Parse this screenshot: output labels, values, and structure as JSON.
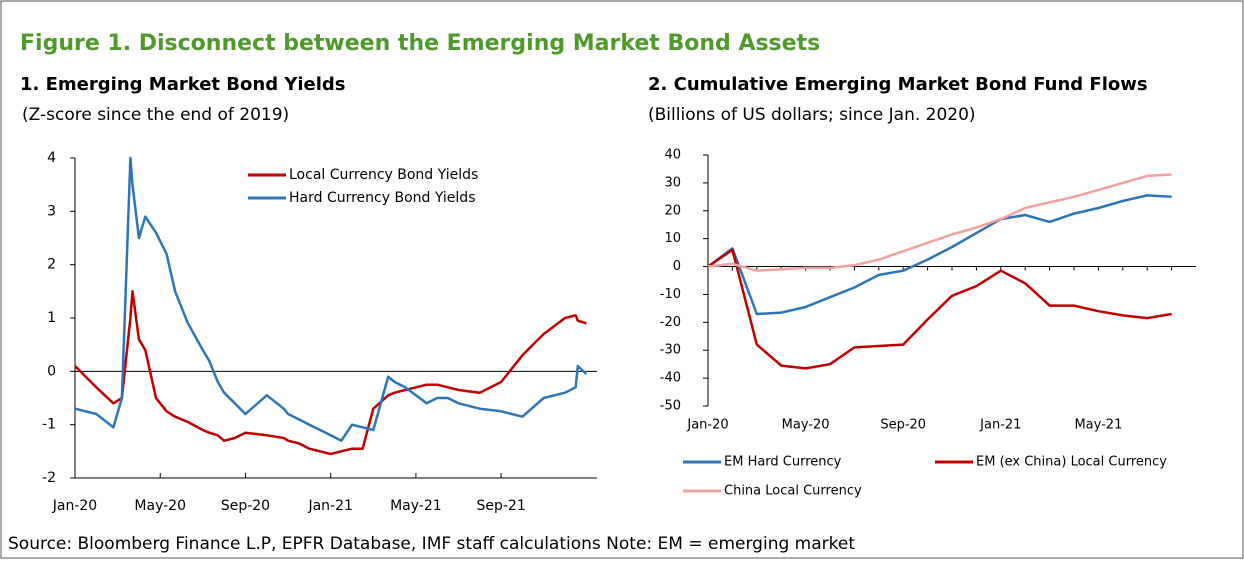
{
  "title": "Figure 1. Disconnect between the Emerging Market Bond Assets",
  "source": "Source: Bloomberg Finance L.P, EPFR Database, IMF staff calculations Note: EM = emerging market",
  "chart_data": [
    {
      "type": "line",
      "title": "1. Emerging Market Bond Yields",
      "subtitle": "(Z-score since the end of 2019)",
      "x": [
        0,
        1,
        1.8,
        2.2,
        2.6,
        2.7,
        3,
        3.3,
        3.8,
        4.3,
        4.7,
        5,
        5.3,
        6,
        6.3,
        6.7,
        7,
        7.5,
        8,
        9,
        9.8,
        10,
        10.5,
        11,
        12,
        12.5,
        13,
        13.5,
        14,
        14.7,
        15,
        15.5,
        16,
        16.5,
        17,
        17.5,
        18,
        19,
        20,
        21,
        22,
        23,
        23.5,
        23.6,
        24
      ],
      "series": [
        {
          "name": "Local Currency Bond Yields",
          "color": "#c00000",
          "values": [
            0.1,
            -0.3,
            -0.6,
            -0.5,
            1.0,
            1.5,
            0.6,
            0.4,
            -0.5,
            -0.75,
            -0.85,
            -0.9,
            -0.95,
            -1.1,
            -1.15,
            -1.2,
            -1.3,
            -1.25,
            -1.15,
            -1.2,
            -1.25,
            -1.3,
            -1.35,
            -1.45,
            -1.55,
            -1.5,
            -1.45,
            -1.45,
            -0.7,
            -0.45,
            -0.4,
            -0.35,
            -0.3,
            -0.25,
            -0.25,
            -0.3,
            -0.35,
            -0.4,
            -0.2,
            0.3,
            0.7,
            1.0,
            1.05,
            0.95,
            0.9
          ]
        },
        {
          "name": "Hard Currency Bond Yields",
          "color": "#2e75b6",
          "values": [
            -0.7,
            -0.8,
            -1.05,
            -0.5,
            4,
            3.5,
            2.5,
            2.9,
            2.6,
            2.2,
            1.5,
            1.2,
            0.9,
            0.4,
            0.2,
            -0.2,
            -0.4,
            -0.6,
            -0.8,
            -0.45,
            -0.7,
            -0.8,
            -0.9,
            -1.0,
            -1.2,
            -1.3,
            -1.0,
            -1.05,
            -1.1,
            -0.1,
            -0.2,
            -0.3,
            -0.45,
            -0.6,
            -0.5,
            -0.5,
            -0.6,
            -0.7,
            -0.75,
            -0.85,
            -0.5,
            -0.4,
            -0.3,
            0.1,
            -0.05
          ]
        }
      ],
      "xlim": [
        0,
        24.5
      ],
      "xticks": [
        {
          "value": 0,
          "label": "Jan-20"
        },
        {
          "value": 4,
          "label": "May-20"
        },
        {
          "value": 8,
          "label": "Sep-20"
        },
        {
          "value": 12,
          "label": "Jan-21"
        },
        {
          "value": 16,
          "label": "May-21"
        },
        {
          "value": 20,
          "label": "Sep-21"
        }
      ],
      "ylim": [
        -2,
        4
      ],
      "yticks": [
        -2,
        -1,
        0,
        1,
        2,
        3,
        4
      ],
      "legend": "inside-top",
      "grid": false
    },
    {
      "type": "line",
      "title": "2. Cumulative Emerging Market Bond Fund Flows",
      "subtitle": "(Billions of US dollars; since Jan. 2020)",
      "categories": [
        "Jan-20",
        null,
        null,
        null,
        "May-20",
        null,
        null,
        null,
        "Sep-20",
        null,
        null,
        null,
        "Jan-21",
        null,
        null,
        null,
        "May-21",
        null,
        null,
        null
      ],
      "series": [
        {
          "name": "EM Hard Currency",
          "color": "#2e75b6",
          "values": [
            0,
            6.5,
            -17,
            -16.5,
            -14.5,
            -11,
            -7.5,
            -3,
            -1.5,
            2.5,
            7,
            12,
            17,
            18.5,
            16,
            19,
            21,
            23.5,
            25.5,
            25
          ]
        },
        {
          "name": "EM (ex China) Local Currency",
          "color": "#c00000",
          "values": [
            0,
            6,
            -28,
            -35.5,
            -36.5,
            -35,
            -29,
            -28.5,
            -28,
            -19,
            -10.5,
            -7,
            -1.5,
            -6,
            -14,
            -14,
            -16,
            -17.5,
            -18.5,
            -17
          ]
        },
        {
          "name": "China Local Currency",
          "color": "#f4a0a0",
          "values": [
            0,
            1,
            -1.5,
            -1,
            -0.5,
            -0.5,
            0.5,
            2.5,
            5.5,
            8.5,
            11.5,
            14,
            17,
            21,
            23,
            25,
            27.5,
            30,
            32.5,
            33
          ]
        }
      ],
      "ylim": [
        -50,
        40
      ],
      "yticks": [
        -50,
        -40,
        -30,
        -20,
        -10,
        0,
        10,
        20,
        30,
        40
      ],
      "legend": "below",
      "grid": false
    }
  ]
}
